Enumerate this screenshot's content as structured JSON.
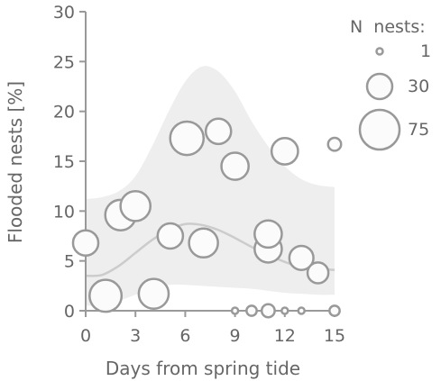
{
  "chart_data": {
    "type": "scatter",
    "xlabel": "Days from spring tide",
    "ylabel": "Flooded nests [%]",
    "xlim": [
      0,
      15
    ],
    "ylim": [
      0,
      30
    ],
    "xticks": [
      "0",
      "3",
      "6",
      "9",
      "12",
      "15"
    ],
    "yticks": [
      "0",
      "5",
      "10",
      "15",
      "20",
      "25",
      "30"
    ],
    "grid": false,
    "legend": {
      "title": "N  nests:",
      "placement": "top-right",
      "entries": [
        "1",
        "30",
        "75"
      ]
    },
    "points": [
      {
        "x": 0,
        "y": 6.8,
        "n": 25
      },
      {
        "x": 1.2,
        "y": 1.5,
        "n": 45
      },
      {
        "x": 2.1,
        "y": 9.6,
        "n": 40
      },
      {
        "x": 3,
        "y": 10.5,
        "n": 38
      },
      {
        "x": 4.1,
        "y": 1.7,
        "n": 38
      },
      {
        "x": 5.1,
        "y": 7.5,
        "n": 25
      },
      {
        "x": 6.1,
        "y": 17.3,
        "n": 50
      },
      {
        "x": 7.1,
        "y": 6.8,
        "n": 35
      },
      {
        "x": 8,
        "y": 18,
        "n": 25
      },
      {
        "x": 9,
        "y": 14.5,
        "n": 30
      },
      {
        "x": 9,
        "y": 0,
        "n": 1
      },
      {
        "x": 10,
        "y": 0,
        "n": 2
      },
      {
        "x": 11,
        "y": 0,
        "n": 4
      },
      {
        "x": 12,
        "y": 0,
        "n": 1
      },
      {
        "x": 13,
        "y": 0,
        "n": 1
      },
      {
        "x": 15,
        "y": 0,
        "n": 2
      },
      {
        "x": 11,
        "y": 6.2,
        "n": 30
      },
      {
        "x": 11,
        "y": 7.7,
        "n": 30
      },
      {
        "x": 12,
        "y": 16,
        "n": 28
      },
      {
        "x": 13,
        "y": 5.3,
        "n": 22
      },
      {
        "x": 14,
        "y": 3.8,
        "n": 15
      },
      {
        "x": 15,
        "y": 16.7,
        "n": 4
      }
    ],
    "fit_line": [
      [
        0,
        3.5
      ],
      [
        1,
        3.6
      ],
      [
        2,
        4.5
      ],
      [
        3,
        5.8
      ],
      [
        4,
        7.1
      ],
      [
        5,
        8.1
      ],
      [
        6,
        8.7
      ],
      [
        7,
        8.6
      ],
      [
        8,
        8.1
      ],
      [
        9,
        7.3
      ],
      [
        10,
        6.4
      ],
      [
        11,
        5.6
      ],
      [
        12,
        4.9
      ],
      [
        13,
        4.4
      ],
      [
        14,
        4.2
      ],
      [
        15,
        4.1
      ]
    ],
    "ci_upper": [
      [
        0,
        11.2
      ],
      [
        1,
        11.4
      ],
      [
        2,
        12.0
      ],
      [
        3,
        13.5
      ],
      [
        4,
        16.5
      ],
      [
        5,
        20.0
      ],
      [
        6,
        23.0
      ],
      [
        7,
        24.5
      ],
      [
        8,
        24.0
      ],
      [
        9,
        22.0
      ],
      [
        10,
        19.0
      ],
      [
        11,
        16.5
      ],
      [
        12,
        14.5
      ],
      [
        13,
        13.2
      ],
      [
        14,
        12.6
      ],
      [
        15,
        12.4
      ]
    ],
    "ci_lower": [
      [
        0,
        0.5
      ],
      [
        1,
        0.6
      ],
      [
        2,
        1.0
      ],
      [
        3,
        1.6
      ],
      [
        4,
        2.2
      ],
      [
        5,
        2.6
      ],
      [
        6,
        2.6
      ],
      [
        7,
        2.5
      ],
      [
        8,
        2.4
      ],
      [
        9,
        2.3
      ],
      [
        10,
        2.2
      ],
      [
        11,
        2.0
      ],
      [
        12,
        1.8
      ],
      [
        13,
        1.7
      ],
      [
        14,
        1.6
      ],
      [
        15,
        1.6
      ]
    ]
  },
  "colors": {
    "axis": "#999999",
    "band": "#eeeeee",
    "fit": "#cccccc",
    "bubble_stroke": "#999999",
    "bubble_fill": "#fbfbfb"
  }
}
